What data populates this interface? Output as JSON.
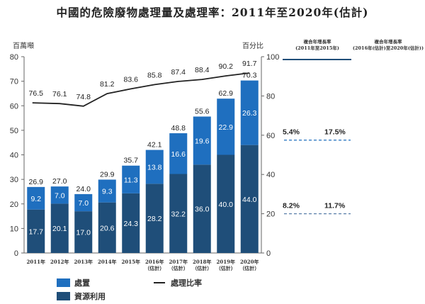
{
  "chart_data": {
    "type": "bar",
    "subtype": "stacked-bar-with-line",
    "title": "中國的危險廢物處理量及處理率：2011年至2020年(估計)",
    "left_axis": {
      "label": "百萬噸",
      "ylim": [
        0,
        80
      ],
      "ticks": [
        "0",
        "10",
        "20",
        "30",
        "40",
        "50",
        "60",
        "70",
        "80"
      ]
    },
    "right_axis": {
      "label": "百分比",
      "ylim": [
        0,
        100
      ],
      "ticks": [
        "0",
        "20",
        "40",
        "60",
        "80",
        "100"
      ]
    },
    "categories": [
      {
        "year": "2011年",
        "note": ""
      },
      {
        "year": "2012年",
        "note": ""
      },
      {
        "year": "2013年",
        "note": ""
      },
      {
        "year": "2014年",
        "note": ""
      },
      {
        "year": "2015年",
        "note": ""
      },
      {
        "year": "2016年",
        "note": "（估計）"
      },
      {
        "year": "2017年",
        "note": "（估計）"
      },
      {
        "year": "2018年",
        "note": "（估計）"
      },
      {
        "year": "2019年",
        "note": "（估計）"
      },
      {
        "year": "2020年",
        "note": "（估計）"
      }
    ],
    "series": [
      {
        "name": "資源利用",
        "color": "#1f4e79",
        "values": [
          17.7,
          20.1,
          17.0,
          20.6,
          24.3,
          28.2,
          32.2,
          36.0,
          40.0,
          44.0
        ]
      },
      {
        "name": "處置",
        "color": "#1f6fbf",
        "values": [
          9.2,
          7.0,
          7.0,
          9.3,
          11.3,
          13.8,
          16.6,
          19.6,
          22.9,
          26.3
        ]
      }
    ],
    "totals": [
      "26.9",
      "27.0",
      "24.0",
      "29.9",
      "35.7",
      "42.1",
      "48.8",
      "55.6",
      "62.9",
      "70.3"
    ],
    "line_series": {
      "name": "處理比率",
      "axis": "right",
      "color": "#222222",
      "values": [
        76.5,
        76.1,
        74.8,
        81.2,
        83.6,
        85.8,
        87.4,
        88.4,
        90.2,
        91.7
      ]
    },
    "legend": [
      "處置",
      "資源利用",
      "處理比率"
    ],
    "legend_position": "bottom-left",
    "cagr": {
      "headers": [
        "複合年增長率\n(2011年至2015年)",
        "複合年增長率\n(2016年(估計)至2020年(估計))"
      ],
      "rows": [
        {
          "series": "處置",
          "values": [
            "5.4%",
            "17.5%"
          ],
          "color": "#1f6fbf"
        },
        {
          "series": "資源利用",
          "values": [
            "8.2%",
            "11.7%"
          ],
          "color": "#5a7fa8"
        }
      ]
    }
  },
  "labels": {
    "title": "中國的危險廢物處理量及處理率：2011年至2020年(估計)",
    "left_unit": "百萬噸",
    "right_unit": "百分比",
    "cagr_head_1_line1": "複合年增長率",
    "cagr_head_1_line2": "(2011年至2015年)",
    "cagr_head_2_line1": "複合年增長率",
    "cagr_head_2_line2": "(2016年(估計)至2020年(估計))",
    "legend_disposal": "處置",
    "legend_reuse": "資源利用",
    "legend_rate": "處理比率"
  }
}
